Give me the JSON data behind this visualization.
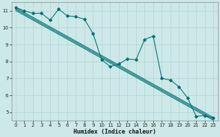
{
  "xlabel": "Humidex (Indice chaleur)",
  "bg_color": "#cce8e8",
  "grid_color": "#b8d4d4",
  "line_color": "#007070",
  "xlim": [
    -0.5,
    23.5
  ],
  "ylim": [
    4.5,
    11.5
  ],
  "xticks": [
    0,
    1,
    2,
    3,
    4,
    5,
    6,
    7,
    8,
    9,
    10,
    11,
    12,
    13,
    14,
    15,
    16,
    17,
    18,
    19,
    20,
    21,
    22,
    23
  ],
  "yticks": [
    5,
    6,
    7,
    8,
    9,
    10,
    11
  ],
  "line1_x": [
    0,
    1,
    2,
    3,
    4,
    5,
    6,
    7,
    8,
    9,
    10,
    11,
    12,
    13,
    14,
    15,
    16,
    17,
    18,
    19,
    20,
    21,
    22,
    23
  ],
  "line1_y": [
    11.2,
    11.0,
    10.85,
    10.85,
    10.45,
    11.1,
    10.7,
    10.65,
    10.5,
    9.65,
    8.1,
    7.7,
    7.85,
    8.15,
    8.1,
    9.3,
    9.5,
    7.0,
    6.9,
    6.5,
    5.85,
    4.75,
    4.8,
    4.65
  ],
  "reg_lines": [
    {
      "x0": 0,
      "y0": 11.18,
      "x1": 23,
      "y1": 4.68
    },
    {
      "x0": 0,
      "y0": 11.1,
      "x1": 23,
      "y1": 4.6
    },
    {
      "x0": 0,
      "y0": 11.02,
      "x1": 23,
      "y1": 4.52
    }
  ],
  "xlabel_fontsize": 6.0,
  "tick_fontsize": 5.0
}
